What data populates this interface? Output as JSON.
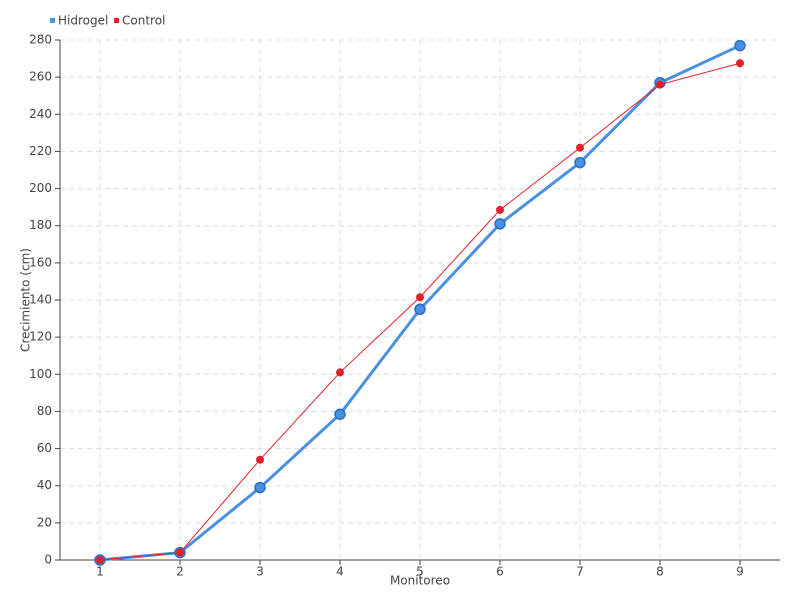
{
  "chart_data": {
    "type": "line",
    "x_label": "Monitoreo",
    "y_label": "Crecimiento (cm)",
    "x": [
      1,
      2,
      3,
      4,
      5,
      6,
      7,
      8,
      9
    ],
    "series": [
      {
        "name": "Hidrogel",
        "color": "#4a90e2",
        "values": [
          0,
          4,
          39,
          78.5,
          135,
          181,
          214,
          257,
          277
        ]
      },
      {
        "name": "Control",
        "color": "#e3202a",
        "values": [
          0,
          4,
          54,
          101,
          141.5,
          188.5,
          222,
          256,
          267.5
        ]
      }
    ],
    "xlim": [
      0.5,
      9.5
    ],
    "xticks": [
      1,
      2,
      3,
      4,
      5,
      6,
      7,
      8,
      9
    ],
    "ylim": [
      0,
      280
    ],
    "yticks": [
      0,
      20,
      40,
      60,
      80,
      100,
      120,
      140,
      160,
      180,
      200,
      220,
      240,
      260,
      280
    ],
    "grid": true,
    "legend": "top-left"
  }
}
